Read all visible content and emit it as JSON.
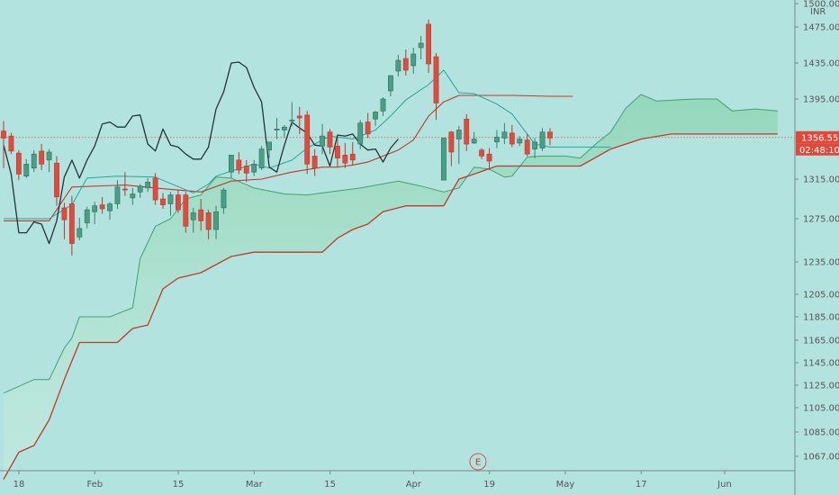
{
  "chart_data": {
    "type": "candlestick",
    "currency": "INR",
    "y_ticks": [
      1500,
      1475,
      1435,
      1395,
      1315,
      1275,
      1235,
      1205,
      1185,
      1165,
      1145,
      1125,
      1105,
      1085,
      1067
    ],
    "y_tick_labels": [
      "1500.00",
      "1475.00",
      "1435.00",
      "1395.00",
      "1315.00",
      "1275.00",
      "1235.00",
      "1205.00",
      "1185.00",
      "1165.00",
      "1145.00",
      "1125.00",
      "1105.00",
      "1085.00",
      "1067.00"
    ],
    "x_ticks": [
      {
        "label": "18",
        "i": 0
      },
      {
        "label": "Feb",
        "i": 10
      },
      {
        "label": "15",
        "i": 21
      },
      {
        "label": "Mar",
        "i": 31
      },
      {
        "label": "15",
        "i": 41
      },
      {
        "label": "Apr",
        "i": 52
      },
      {
        "label": "19",
        "i": 62
      },
      {
        "label": "May",
        "i": 72
      },
      {
        "label": "17",
        "i": 82
      },
      {
        "label": "Jun",
        "i": 93
      }
    ],
    "current_price": 1356.55,
    "current_price_label": "1356.55",
    "countdown_label": "02:48:10",
    "earnings_marker": {
      "label": "E",
      "i": 60
    },
    "candles": [
      {
        "o": 1363,
        "h": 1373,
        "l": 1326,
        "c": 1356
      },
      {
        "o": 1358,
        "h": 1361,
        "l": 1340,
        "c": 1343
      },
      {
        "o": 1341,
        "h": 1344,
        "l": 1314,
        "c": 1320
      },
      {
        "o": 1318,
        "h": 1335,
        "l": 1316,
        "c": 1330
      },
      {
        "o": 1326,
        "h": 1344,
        "l": 1322,
        "c": 1340
      },
      {
        "o": 1343,
        "h": 1350,
        "l": 1324,
        "c": 1330
      },
      {
        "o": 1334,
        "h": 1345,
        "l": 1322,
        "c": 1342
      },
      {
        "o": 1331,
        "h": 1338,
        "l": 1288,
        "c": 1297
      },
      {
        "o": 1286,
        "h": 1291,
        "l": 1256,
        "c": 1274
      },
      {
        "o": 1290,
        "h": 1298,
        "l": 1241,
        "c": 1252
      },
      {
        "o": 1258,
        "h": 1276,
        "l": 1255,
        "c": 1266
      },
      {
        "o": 1271,
        "h": 1287,
        "l": 1266,
        "c": 1284
      },
      {
        "o": 1282,
        "h": 1292,
        "l": 1270,
        "c": 1288
      },
      {
        "o": 1289,
        "h": 1297,
        "l": 1280,
        "c": 1285
      },
      {
        "o": 1283,
        "h": 1292,
        "l": 1274,
        "c": 1290
      },
      {
        "o": 1290,
        "h": 1314,
        "l": 1285,
        "c": 1307
      },
      {
        "o": 1305,
        "h": 1322,
        "l": 1298,
        "c": 1304
      },
      {
        "o": 1296,
        "h": 1306,
        "l": 1289,
        "c": 1300
      },
      {
        "o": 1302,
        "h": 1310,
        "l": 1296,
        "c": 1308
      },
      {
        "o": 1306,
        "h": 1316,
        "l": 1302,
        "c": 1312
      },
      {
        "o": 1316,
        "h": 1321,
        "l": 1289,
        "c": 1294
      },
      {
        "o": 1295,
        "h": 1301,
        "l": 1285,
        "c": 1289
      },
      {
        "o": 1290,
        "h": 1302,
        "l": 1278,
        "c": 1299
      },
      {
        "o": 1299,
        "h": 1304,
        "l": 1281,
        "c": 1284
      },
      {
        "o": 1299,
        "h": 1302,
        "l": 1262,
        "c": 1268
      },
      {
        "o": 1274,
        "h": 1286,
        "l": 1262,
        "c": 1281
      },
      {
        "o": 1284,
        "h": 1295,
        "l": 1264,
        "c": 1273
      },
      {
        "o": 1281,
        "h": 1284,
        "l": 1256,
        "c": 1265
      },
      {
        "o": 1265,
        "h": 1288,
        "l": 1256,
        "c": 1282
      },
      {
        "o": 1286,
        "h": 1306,
        "l": 1280,
        "c": 1304
      },
      {
        "o": 1322,
        "h": 1339,
        "l": 1316,
        "c": 1339
      },
      {
        "o": 1334,
        "h": 1342,
        "l": 1320,
        "c": 1324
      },
      {
        "o": 1328,
        "h": 1334,
        "l": 1312,
        "c": 1321
      },
      {
        "o": 1322,
        "h": 1334,
        "l": 1318,
        "c": 1330
      },
      {
        "o": 1326,
        "h": 1348,
        "l": 1324,
        "c": 1345
      },
      {
        "o": 1344,
        "h": 1352,
        "l": 1336,
        "c": 1352
      },
      {
        "o": 1364,
        "h": 1376,
        "l": 1355,
        "c": 1365
      },
      {
        "o": 1364,
        "h": 1369,
        "l": 1356,
        "c": 1367
      },
      {
        "o": 1373,
        "h": 1392,
        "l": 1368,
        "c": 1374
      },
      {
        "o": 1378,
        "h": 1387,
        "l": 1360,
        "c": 1376
      },
      {
        "o": 1379,
        "h": 1383,
        "l": 1320,
        "c": 1330
      },
      {
        "o": 1338,
        "h": 1345,
        "l": 1318,
        "c": 1326
      },
      {
        "o": 1348,
        "h": 1370,
        "l": 1340,
        "c": 1358
      },
      {
        "o": 1362,
        "h": 1365,
        "l": 1340,
        "c": 1347
      },
      {
        "o": 1348,
        "h": 1356,
        "l": 1327,
        "c": 1336
      },
      {
        "o": 1339,
        "h": 1351,
        "l": 1326,
        "c": 1331
      },
      {
        "o": 1340,
        "h": 1352,
        "l": 1329,
        "c": 1334
      },
      {
        "o": 1350,
        "h": 1374,
        "l": 1345,
        "c": 1371
      },
      {
        "o": 1372,
        "h": 1381,
        "l": 1356,
        "c": 1360
      },
      {
        "o": 1375,
        "h": 1383,
        "l": 1368,
        "c": 1382
      },
      {
        "o": 1383,
        "h": 1397,
        "l": 1378,
        "c": 1395
      },
      {
        "o": 1404,
        "h": 1420,
        "l": 1398,
        "c": 1421
      },
      {
        "o": 1426,
        "h": 1444,
        "l": 1420,
        "c": 1438
      },
      {
        "o": 1440,
        "h": 1450,
        "l": 1421,
        "c": 1427
      },
      {
        "o": 1432,
        "h": 1452,
        "l": 1423,
        "c": 1445
      },
      {
        "o": 1452,
        "h": 1465,
        "l": 1439,
        "c": 1457
      },
      {
        "o": 1478,
        "h": 1483,
        "l": 1424,
        "c": 1434
      },
      {
        "o": 1442,
        "h": 1446,
        "l": 1374,
        "c": 1391
      },
      {
        "o": 1314,
        "h": 1356,
        "l": 1314,
        "c": 1356
      },
      {
        "o": 1362,
        "h": 1363,
        "l": 1328,
        "c": 1342
      },
      {
        "o": 1355,
        "h": 1368,
        "l": 1330,
        "c": 1364
      },
      {
        "o": 1375,
        "h": 1380,
        "l": 1343,
        "c": 1350
      },
      {
        "o": 1351,
        "h": 1362,
        "l": 1350,
        "c": 1355
      },
      {
        "o": 1344,
        "h": 1346,
        "l": 1335,
        "c": 1338
      },
      {
        "o": 1340,
        "h": 1346,
        "l": 1324,
        "c": 1333
      },
      {
        "o": 1352,
        "h": 1364,
        "l": 1346,
        "c": 1357
      },
      {
        "o": 1356,
        "h": 1371,
        "l": 1350,
        "c": 1362
      },
      {
        "o": 1361,
        "h": 1369,
        "l": 1347,
        "c": 1350
      },
      {
        "o": 1351,
        "h": 1358,
        "l": 1348,
        "c": 1355
      },
      {
        "o": 1354,
        "h": 1360,
        "l": 1338,
        "c": 1340
      },
      {
        "o": 1345,
        "h": 1356,
        "l": 1336,
        "c": 1352
      },
      {
        "o": 1346,
        "h": 1366,
        "l": 1343,
        "c": 1362
      },
      {
        "o": 1362,
        "h": 1366,
        "l": 1349,
        "c": 1356
      }
    ],
    "tenkan": [
      [
        0,
        1275
      ],
      [
        6,
        1275
      ],
      [
        9,
        1289
      ],
      [
        11,
        1316
      ],
      [
        15,
        1318
      ],
      [
        20,
        1317
      ],
      [
        25,
        1301
      ],
      [
        27,
        1310
      ],
      [
        28,
        1318
      ],
      [
        30,
        1323
      ],
      [
        33,
        1330
      ],
      [
        35,
        1326
      ],
      [
        38,
        1334
      ],
      [
        40,
        1346
      ],
      [
        43,
        1358
      ],
      [
        46,
        1355
      ],
      [
        49,
        1364
      ],
      [
        51,
        1378
      ],
      [
        53,
        1394
      ],
      [
        56,
        1411
      ],
      [
        58,
        1427
      ],
      [
        60,
        1402
      ],
      [
        62,
        1401
      ],
      [
        65,
        1390
      ],
      [
        67,
        1380
      ],
      [
        70,
        1350
      ],
      [
        72,
        1347
      ],
      [
        75,
        1347
      ],
      [
        80,
        1347
      ]
    ],
    "kijun": [
      [
        0,
        1273
      ],
      [
        6,
        1273
      ],
      [
        9,
        1307
      ],
      [
        16,
        1309
      ],
      [
        20,
        1306
      ],
      [
        26,
        1302
      ],
      [
        30,
        1313
      ],
      [
        34,
        1315
      ],
      [
        38,
        1322
      ],
      [
        42,
        1327
      ],
      [
        44,
        1327
      ],
      [
        46,
        1329
      ],
      [
        48,
        1332
      ],
      [
        50,
        1338
      ],
      [
        52,
        1344
      ],
      [
        54,
        1354
      ],
      [
        56,
        1378
      ],
      [
        58,
        1392
      ],
      [
        60,
        1399
      ],
      [
        63,
        1399
      ],
      [
        67,
        1399
      ],
      [
        72,
        1398
      ],
      [
        75,
        1398
      ]
    ],
    "chikou": [
      [
        0,
        1349
      ],
      [
        1,
        1320
      ],
      [
        2,
        1262
      ],
      [
        3,
        1262
      ],
      [
        4,
        1272
      ],
      [
        5,
        1270
      ],
      [
        6,
        1252
      ],
      [
        7,
        1273
      ],
      [
        8,
        1317
      ],
      [
        9,
        1334
      ],
      [
        10,
        1316
      ],
      [
        11,
        1334
      ],
      [
        12,
        1348
      ],
      [
        13,
        1370
      ],
      [
        14,
        1372
      ],
      [
        15,
        1367
      ],
      [
        16,
        1367
      ],
      [
        17,
        1378
      ],
      [
        18,
        1379
      ],
      [
        19,
        1350
      ],
      [
        20,
        1343
      ],
      [
        21,
        1365
      ],
      [
        22,
        1349
      ],
      [
        23,
        1347
      ],
      [
        24,
        1340
      ],
      [
        25,
        1335
      ],
      [
        26,
        1335
      ],
      [
        27,
        1347
      ],
      [
        28,
        1385
      ],
      [
        29,
        1403
      ],
      [
        30,
        1435
      ],
      [
        31,
        1436
      ],
      [
        32,
        1430
      ],
      [
        33,
        1408
      ],
      [
        34,
        1392
      ],
      [
        35,
        1327
      ],
      [
        36,
        1322
      ],
      [
        37,
        1349
      ],
      [
        38,
        1372
      ],
      [
        39,
        1366
      ],
      [
        40,
        1361
      ],
      [
        41,
        1349
      ],
      [
        42,
        1348
      ],
      [
        43,
        1328
      ],
      [
        44,
        1359
      ],
      [
        45,
        1358
      ],
      [
        46,
        1360
      ],
      [
        47,
        1350
      ],
      [
        48,
        1344
      ],
      [
        49,
        1345
      ],
      [
        50,
        1332
      ],
      [
        51,
        1346
      ],
      [
        52,
        1355
      ]
    ],
    "senkou_a": [
      [
        0,
        1118
      ],
      [
        4,
        1130
      ],
      [
        6,
        1130
      ],
      [
        8,
        1158
      ],
      [
        9,
        1167
      ],
      [
        10,
        1185
      ],
      [
        14,
        1185
      ],
      [
        17,
        1193
      ],
      [
        18,
        1238
      ],
      [
        20,
        1268
      ],
      [
        22,
        1275
      ],
      [
        24,
        1295
      ],
      [
        26,
        1299
      ],
      [
        28,
        1317
      ],
      [
        30,
        1316
      ],
      [
        33,
        1306
      ],
      [
        37,
        1300
      ],
      [
        40,
        1299
      ],
      [
        43,
        1302
      ],
      [
        47,
        1306
      ],
      [
        52,
        1313
      ],
      [
        55,
        1308
      ],
      [
        58,
        1302
      ],
      [
        60,
        1306
      ],
      [
        62,
        1327
      ],
      [
        64,
        1325
      ],
      [
        66,
        1317
      ],
      [
        67,
        1318
      ],
      [
        69,
        1337
      ],
      [
        71,
        1338
      ],
      [
        74,
        1338
      ],
      [
        76,
        1336
      ],
      [
        78,
        1350
      ],
      [
        80,
        1362
      ],
      [
        82,
        1386
      ],
      [
        84,
        1400
      ],
      [
        86,
        1393
      ],
      [
        91,
        1395
      ],
      [
        94,
        1395
      ],
      [
        96,
        1383
      ],
      [
        99,
        1385
      ],
      [
        102,
        1383
      ]
    ],
    "senkou_b": [
      [
        0,
        1050
      ],
      [
        2,
        1070
      ],
      [
        4,
        1075
      ],
      [
        6,
        1095
      ],
      [
        8,
        1130
      ],
      [
        10,
        1163
      ],
      [
        13,
        1163
      ],
      [
        15,
        1163
      ],
      [
        17,
        1175
      ],
      [
        19,
        1178
      ],
      [
        21,
        1210
      ],
      [
        23,
        1220
      ],
      [
        26,
        1225
      ],
      [
        30,
        1240
      ],
      [
        33,
        1244
      ],
      [
        37,
        1244
      ],
      [
        42,
        1244
      ],
      [
        44,
        1257
      ],
      [
        46,
        1265
      ],
      [
        48,
        1270
      ],
      [
        50,
        1282
      ],
      [
        53,
        1288
      ],
      [
        56,
        1288
      ],
      [
        58,
        1288
      ],
      [
        60,
        1315
      ],
      [
        62,
        1320
      ],
      [
        65,
        1328
      ],
      [
        67,
        1328
      ],
      [
        72,
        1328
      ],
      [
        76,
        1328
      ],
      [
        80,
        1345
      ],
      [
        84,
        1355
      ],
      [
        88,
        1360
      ],
      [
        94,
        1360
      ],
      [
        102,
        1360
      ]
    ]
  }
}
